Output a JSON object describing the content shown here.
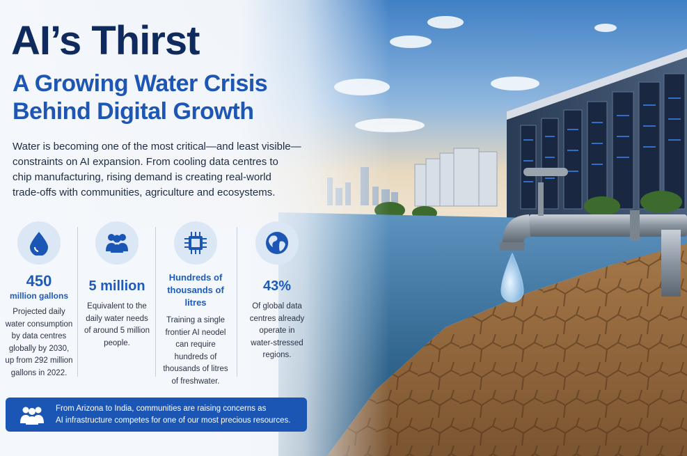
{
  "title": "AI’s Thirst",
  "subtitle_lines": [
    "A Growing Water Crisis",
    "Behind Digital Growth"
  ],
  "intro_lines": [
    "Water is becoming one of the most critical—and least visible—",
    "constraints on AI expansion. From cooling data centres to",
    "chip manufacturing, rising demand is creating real-world",
    "trade-offs with communities, agriculture and ecosystems."
  ],
  "stats": [
    {
      "icon": "water-drop-icon",
      "value": "450",
      "unit": "million gallons",
      "desc_lines": [
        "Projected daily",
        "water consumption",
        "by data centres",
        "globally by 2030,",
        "up from 292 million",
        "gallons in 2022."
      ]
    },
    {
      "icon": "people-group-icon",
      "value": "5 million",
      "desc_lines": [
        "Equivalent to the",
        "daily water needs",
        "of around 5 million",
        "people."
      ]
    },
    {
      "icon": "chip-icon",
      "value_lines": [
        "Hundreds of",
        "thousands of litres"
      ],
      "desc_lines": [
        "Training a single",
        "frontier AI neodel",
        "can require",
        "hundreds of",
        "thousands of litres",
        "of freshwater."
      ]
    },
    {
      "icon": "globe-icon",
      "value": "43%",
      "desc_lines": [
        "Of global data",
        "centres already",
        "operate in",
        "water-stressed",
        "regions."
      ]
    }
  ],
  "banner": {
    "icon": "community-icon",
    "lines": [
      "From Arizona to India, communities are raising concerns as",
      "AI infrastructure competes for one of our most precious resources."
    ]
  },
  "colors": {
    "title": "#0f2a5c",
    "accent": "#1d56b3",
    "banner": "#1b56b5",
    "icon_bg": "#dbe7f5"
  }
}
